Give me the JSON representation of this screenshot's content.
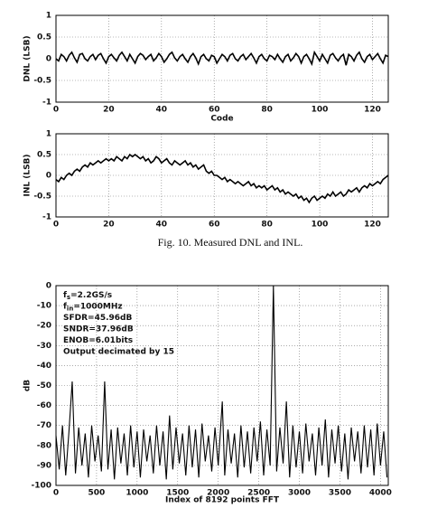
{
  "chart_data": [
    {
      "type": "line",
      "x_label": "Code",
      "y_label": "DNL (LSB)",
      "xlim": [
        0,
        126
      ],
      "ylim": [
        -1,
        1
      ],
      "xticks": [
        0,
        20,
        40,
        60,
        80,
        100,
        120
      ],
      "yticks": [
        1,
        0.5,
        0,
        -0.5,
        -1
      ],
      "grid": true,
      "color": "#000000",
      "values": [
        0.0,
        -0.05,
        0.1,
        0.05,
        -0.05,
        0.08,
        0.15,
        0.02,
        -0.08,
        0.1,
        0.12,
        0.0,
        -0.05,
        0.05,
        0.1,
        -0.02,
        0.08,
        0.12,
        0.0,
        -0.1,
        0.05,
        0.1,
        0.02,
        -0.05,
        0.08,
        0.15,
        0.05,
        -0.05,
        0.1,
        0.0,
        -0.1,
        0.05,
        0.12,
        0.08,
        -0.02,
        0.05,
        0.1,
        -0.05,
        0.02,
        0.12,
        0.05,
        -0.08,
        0.0,
        0.1,
        0.15,
        0.02,
        -0.05,
        0.05,
        0.1,
        0.0,
        -0.08,
        0.05,
        0.12,
        0.02,
        -0.12,
        0.05,
        0.1,
        0.0,
        -0.05,
        0.08,
        0.05,
        -0.1,
        0.0,
        0.1,
        0.05,
        -0.05,
        0.08,
        0.12,
        0.0,
        -0.05,
        0.05,
        0.1,
        -0.02,
        0.05,
        0.12,
        0.02,
        -0.1,
        0.05,
        0.1,
        0.0,
        -0.05,
        0.08,
        0.05,
        -0.02,
        0.1,
        0.0,
        -0.08,
        0.05,
        0.1,
        -0.05,
        0.02,
        0.12,
        0.05,
        -0.1,
        0.05,
        0.1,
        0.0,
        -0.12,
        0.15,
        0.05,
        -0.05,
        0.1,
        0.0,
        -0.1,
        0.08,
        0.12,
        0.02,
        -0.05,
        0.05,
        0.1,
        -0.15,
        0.1,
        0.05,
        -0.05,
        0.08,
        0.15,
        0.0,
        -0.08,
        0.05,
        0.1,
        -0.02,
        0.05,
        0.12,
        0.0,
        -0.1,
        0.08,
        0.05
      ]
    },
    {
      "type": "line",
      "y_label": "INL (LSB)",
      "xlim": [
        0,
        126
      ],
      "ylim": [
        -1,
        1
      ],
      "xticks": [
        0,
        20,
        40,
        60,
        80,
        100,
        120
      ],
      "yticks": [
        1,
        0.5,
        0,
        -0.5,
        -1
      ],
      "grid": true,
      "color": "#000000",
      "values": [
        -0.1,
        -0.15,
        -0.05,
        -0.1,
        0.0,
        0.05,
        0.0,
        0.1,
        0.15,
        0.1,
        0.2,
        0.25,
        0.2,
        0.3,
        0.25,
        0.3,
        0.35,
        0.3,
        0.35,
        0.4,
        0.35,
        0.4,
        0.35,
        0.45,
        0.4,
        0.35,
        0.45,
        0.4,
        0.5,
        0.45,
        0.5,
        0.45,
        0.4,
        0.45,
        0.35,
        0.4,
        0.3,
        0.35,
        0.45,
        0.4,
        0.3,
        0.35,
        0.4,
        0.3,
        0.25,
        0.35,
        0.3,
        0.25,
        0.3,
        0.35,
        0.25,
        0.3,
        0.2,
        0.25,
        0.15,
        0.2,
        0.25,
        0.1,
        0.05,
        0.1,
        0.0,
        0.0,
        -0.05,
        -0.1,
        -0.05,
        -0.15,
        -0.1,
        -0.15,
        -0.2,
        -0.15,
        -0.2,
        -0.25,
        -0.2,
        -0.15,
        -0.25,
        -0.2,
        -0.3,
        -0.25,
        -0.3,
        -0.25,
        -0.35,
        -0.3,
        -0.25,
        -0.35,
        -0.3,
        -0.4,
        -0.35,
        -0.45,
        -0.4,
        -0.45,
        -0.5,
        -0.45,
        -0.55,
        -0.5,
        -0.6,
        -0.55,
        -0.65,
        -0.55,
        -0.5,
        -0.6,
        -0.55,
        -0.5,
        -0.55,
        -0.45,
        -0.5,
        -0.4,
        -0.5,
        -0.45,
        -0.4,
        -0.5,
        -0.45,
        -0.35,
        -0.4,
        -0.35,
        -0.3,
        -0.4,
        -0.3,
        -0.25,
        -0.3,
        -0.2,
        -0.25,
        -0.2,
        -0.15,
        -0.2,
        -0.1,
        -0.05,
        0.0
      ]
    },
    {
      "type": "line",
      "x_label": "Index of 8192 points FFT",
      "y_label": "dB",
      "xlim": [
        0,
        4096
      ],
      "ylim": [
        -100,
        0
      ],
      "xticks": [
        0,
        500,
        1000,
        1500,
        2000,
        2500,
        3000,
        3500,
        4000
      ],
      "yticks": [
        0,
        -10,
        -20,
        -30,
        -40,
        -50,
        -60,
        -70,
        -80,
        -90,
        -100
      ],
      "grid": true,
      "color": "#000000",
      "annotations": [
        {
          "text": "f",
          "sub": "s",
          "rest": "=2.2GS/s"
        },
        {
          "text": "f",
          "sub": "in",
          "rest": "=1000MHz"
        },
        {
          "text": "SFDR=45.96dB"
        },
        {
          "text": "SNDR=37.96dB"
        },
        {
          "text": "ENOB=6.01bits"
        },
        {
          "text": "Output decimated by 15"
        }
      ],
      "x": [
        0,
        40,
        80,
        120,
        160,
        200,
        240,
        280,
        320,
        360,
        400,
        440,
        480,
        520,
        560,
        600,
        640,
        680,
        720,
        760,
        800,
        840,
        880,
        920,
        960,
        1000,
        1040,
        1080,
        1120,
        1160,
        1200,
        1240,
        1280,
        1320,
        1360,
        1400,
        1440,
        1480,
        1520,
        1560,
        1600,
        1640,
        1680,
        1720,
        1760,
        1800,
        1840,
        1880,
        1920,
        1960,
        2000,
        2050,
        2080,
        2120,
        2160,
        2200,
        2240,
        2280,
        2320,
        2360,
        2400,
        2440,
        2480,
        2520,
        2560,
        2600,
        2640,
        2680,
        2720,
        2760,
        2800,
        2840,
        2880,
        2920,
        2960,
        3000,
        3040,
        3080,
        3120,
        3160,
        3200,
        3240,
        3280,
        3320,
        3360,
        3400,
        3440,
        3480,
        3520,
        3560,
        3600,
        3640,
        3680,
        3720,
        3760,
        3800,
        3840,
        3880,
        3920,
        3960,
        4000,
        4040,
        4080
      ],
      "values": [
        -75,
        -92,
        -70,
        -95,
        -73,
        -48,
        -94,
        -71,
        -90,
        -74,
        -96,
        -70,
        -88,
        -75,
        -93,
        -48,
        -92,
        -72,
        -97,
        -71,
        -89,
        -74,
        -95,
        -70,
        -91,
        -73,
        -96,
        -72,
        -88,
        -75,
        -94,
        -70,
        -90,
        -73,
        -97,
        -65,
        -92,
        -71,
        -89,
        -74,
        -95,
        -70,
        -91,
        -72,
        -96,
        -69,
        -88,
        -75,
        -93,
        -71,
        -90,
        -58,
        -95,
        -72,
        -89,
        -74,
        -96,
        -70,
        -91,
        -73,
        -94,
        -71,
        -88,
        -68,
        -95,
        -72,
        -90,
        0,
        -93,
        -71,
        -89,
        -58,
        -96,
        -70,
        -91,
        -73,
        -94,
        -69,
        -88,
        -74,
        -95,
        -71,
        -90,
        -67,
        -96,
        -72,
        -89,
        -70,
        -93,
        -74,
        -97,
        -71,
        -88,
        -73,
        -94,
        -70,
        -91,
        -72,
        -95,
        -69,
        -90,
        -73,
        -96
      ]
    }
  ],
  "caption": "Fig. 10. Measured DNL and INL."
}
